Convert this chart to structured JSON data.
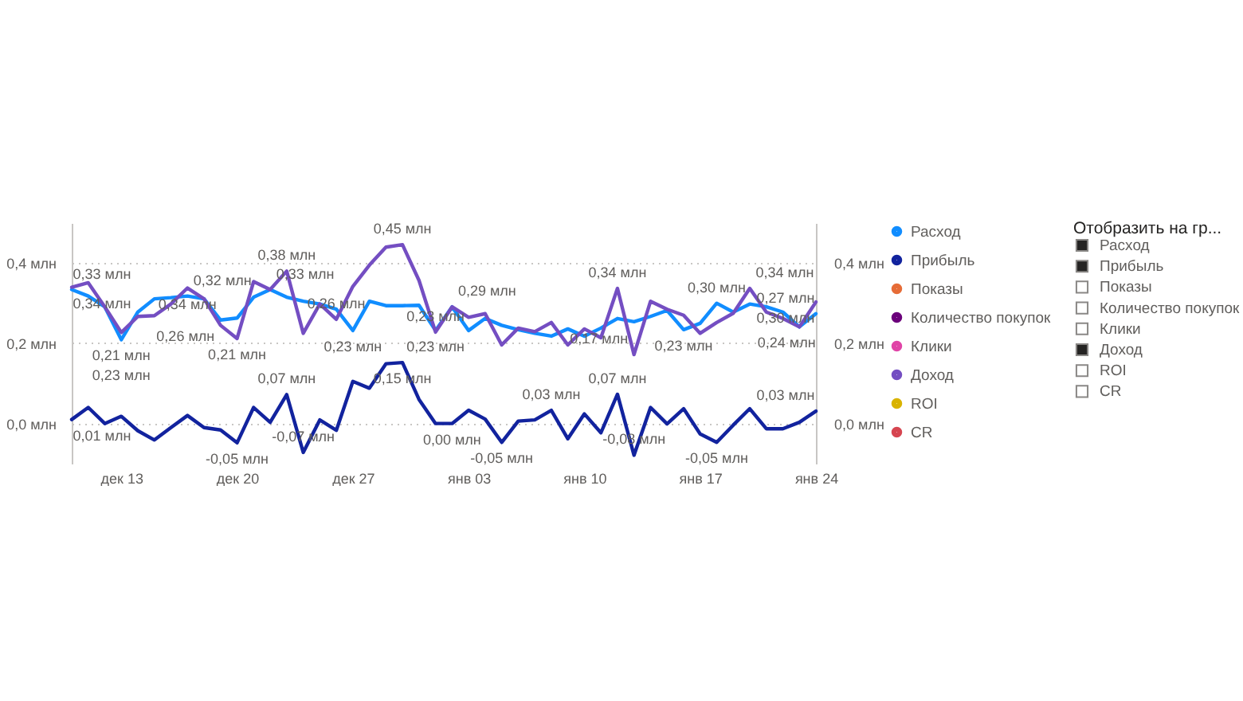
{
  "chart_data": [
    {
      "type": "line",
      "categories": [
        null,
        null,
        null,
        "дек 13",
        null,
        null,
        null,
        null,
        null,
        null,
        "дек 20",
        null,
        null,
        null,
        null,
        null,
        null,
        "дек 27",
        null,
        null,
        null,
        null,
        null,
        null,
        "янв 03",
        null,
        null,
        null,
        null,
        null,
        null,
        "янв 10",
        null,
        null,
        null,
        null,
        null,
        null,
        "янв 17",
        null,
        null,
        null,
        null,
        null,
        null,
        "янв 24"
      ],
      "ylim": [
        -0.1,
        0.5
      ],
      "yticks": [
        {
          "value": 0,
          "label": "0,0 млн"
        },
        {
          "value": 0.2,
          "label": "0,2 млн"
        },
        {
          "value": 0.4,
          "label": "0,4 млн"
        }
      ],
      "y2lim": [
        -0.1,
        0.5
      ],
      "y2ticks": [
        {
          "value": 0,
          "label": "0,0 млн"
        },
        {
          "value": 0.2,
          "label": "0,2 млн"
        },
        {
          "value": 0.4,
          "label": "0,4 млн"
        }
      ],
      "grid": "y",
      "legend": "right",
      "line_style": "solid",
      "series": [
        {
          "name": "Расход",
          "color": "#118dff",
          "values": [
            0.334,
            0.318,
            0.291,
            0.209,
            0.278,
            0.311,
            0.314,
            0.318,
            0.311,
            0.258,
            0.263,
            0.315,
            0.334,
            0.315,
            0.305,
            0.298,
            0.285,
            0.232,
            0.305,
            0.294,
            0.294,
            0.295,
            0.232,
            0.291,
            0.232,
            0.262,
            0.245,
            0.234,
            0.225,
            0.218,
            0.236,
            0.218,
            0.238,
            0.262,
            0.254,
            0.267,
            0.282,
            0.234,
            0.25,
            0.3,
            0.278,
            0.298,
            0.291,
            0.278,
            0.241,
            0.274
          ],
          "value_labels": [
            "0,33 млн",
            null,
            null,
            "0,21 млн",
            null,
            null,
            null,
            "0,32 млн",
            null,
            "0,26 млн",
            null,
            null,
            "0,33 млн",
            null,
            null,
            null,
            null,
            "0,23 млн",
            null,
            null,
            null,
            null,
            "0,23 млн",
            null,
            null,
            null,
            null,
            null,
            null,
            null,
            null,
            null,
            null,
            null,
            null,
            null,
            null,
            "0,23 млн",
            null,
            "0,30 млн",
            null,
            null,
            null,
            null,
            null,
            "0,27 млн"
          ]
        },
        {
          "name": "Прибыль",
          "color": "#12239e",
          "values": [
            0.01,
            0.04,
            0.0,
            0.018,
            -0.018,
            -0.041,
            -0.01,
            0.02,
            -0.01,
            -0.016,
            -0.048,
            0.04,
            0.003,
            0.072,
            -0.072,
            0.009,
            -0.017,
            0.105,
            0.088,
            0.149,
            0.152,
            0.06,
            0.0,
            0.0,
            0.033,
            0.011,
            -0.047,
            0.006,
            0.009,
            0.033,
            -0.038,
            0.024,
            -0.023,
            0.073,
            -0.079,
            0.04,
            -0.001,
            0.037,
            -0.026,
            -0.047,
            -0.004,
            0.037,
            -0.013,
            -0.013,
            0.003,
            0.031
          ],
          "value_labels": [
            "0,01 млн",
            null,
            null,
            null,
            null,
            null,
            null,
            null,
            null,
            null,
            "-0,05 млн",
            null,
            null,
            "0,07 млн",
            "-0,07 млн",
            null,
            null,
            null,
            null,
            null,
            "0,15 млн",
            null,
            null,
            "0,00 млн",
            null,
            null,
            "-0,05 млн",
            null,
            null,
            "0,03 млн",
            null,
            null,
            null,
            "0,07 млн",
            "-0,08 млн",
            null,
            null,
            null,
            null,
            "-0,05 млн",
            null,
            null,
            null,
            null,
            null,
            "0,03 млн"
          ]
        },
        {
          "name": "Показы",
          "color": "#e66c37",
          "values": [
            null,
            null,
            null,
            null,
            null,
            null,
            null,
            null,
            null,
            null,
            null,
            null,
            null,
            null,
            null,
            null,
            null,
            null,
            null,
            null,
            null,
            null,
            null,
            null,
            null,
            null,
            null,
            null,
            null,
            null,
            null,
            null,
            null,
            null,
            null,
            null,
            null,
            null,
            null,
            null,
            null,
            null,
            null,
            null,
            null,
            null
          ]
        },
        {
          "name": "Количество покупок",
          "color": "#6b007b",
          "values": [
            null,
            null,
            null,
            null,
            null,
            null,
            null,
            null,
            null,
            null,
            null,
            null,
            null,
            null,
            null,
            null,
            null,
            null,
            null,
            null,
            null,
            null,
            null,
            null,
            null,
            null,
            null,
            null,
            null,
            null,
            null,
            null,
            null,
            null,
            null,
            null,
            null,
            null,
            null,
            null,
            null,
            null,
            null,
            null,
            null,
            null
          ]
        },
        {
          "name": "Клики",
          "color": "#e044a7",
          "values": [
            null,
            null,
            null,
            null,
            null,
            null,
            null,
            null,
            null,
            null,
            null,
            null,
            null,
            null,
            null,
            null,
            null,
            null,
            null,
            null,
            null,
            null,
            null,
            null,
            null,
            null,
            null,
            null,
            null,
            null,
            null,
            null,
            null,
            null,
            null,
            null,
            null,
            null,
            null,
            null,
            null,
            null,
            null,
            null,
            null,
            null
          ]
        },
        {
          "name": "Доход",
          "color": "#744ec2",
          "values": [
            0.34,
            0.351,
            0.291,
            0.227,
            0.267,
            0.269,
            0.298,
            0.338,
            0.311,
            0.245,
            0.212,
            0.354,
            0.334,
            0.38,
            0.225,
            0.298,
            0.26,
            0.342,
            0.395,
            0.44,
            0.446,
            0.357,
            0.228,
            0.291,
            0.265,
            0.274,
            0.196,
            0.238,
            0.229,
            0.252,
            0.196,
            0.236,
            0.214,
            0.337,
            0.172,
            0.305,
            0.285,
            0.27,
            0.225,
            0.252,
            0.275,
            0.337,
            0.278,
            0.262,
            0.241,
            0.303
          ],
          "value_labels": [
            "0,34 млн",
            null,
            null,
            "0,23 млн",
            null,
            null,
            null,
            "0,34 млн",
            null,
            null,
            "0,21 млн",
            null,
            null,
            "0,38 млн",
            null,
            null,
            "0,26 млн",
            null,
            null,
            null,
            "0,45 млн",
            null,
            "0,23 млн",
            "0,29 млн",
            null,
            null,
            null,
            null,
            null,
            null,
            null,
            null,
            null,
            "0,34 млн",
            "0,17 млн",
            null,
            null,
            null,
            null,
            null,
            null,
            "0,34 млн",
            null,
            null,
            "0,24 млн",
            "0,30 млн"
          ]
        },
        {
          "name": "ROI",
          "color": "#d9b300",
          "values": [
            null,
            null,
            null,
            null,
            null,
            null,
            null,
            null,
            null,
            null,
            null,
            null,
            null,
            null,
            null,
            null,
            null,
            null,
            null,
            null,
            null,
            null,
            null,
            null,
            null,
            null,
            null,
            null,
            null,
            null,
            null,
            null,
            null,
            null,
            null,
            null,
            null,
            null,
            null,
            null,
            null,
            null,
            null,
            null,
            null,
            null
          ]
        },
        {
          "name": "CR",
          "color": "#d64550",
          "values": [
            null,
            null,
            null,
            null,
            null,
            null,
            null,
            null,
            null,
            null,
            null,
            null,
            null,
            null,
            null,
            null,
            null,
            null,
            null,
            null,
            null,
            null,
            null,
            null,
            null,
            null,
            null,
            null,
            null,
            null,
            null,
            null,
            null,
            null,
            null,
            null,
            null,
            null,
            null,
            null,
            null,
            null,
            null,
            null,
            null,
            null
          ]
        }
      ]
    },
    {
      "type": "other",
      "title": "Отобразить на гр...",
      "categories": [
        "Расход",
        "Прибыль",
        "Показы",
        "Количество покупок",
        "Клики",
        "Доход",
        "ROI",
        "CR"
      ],
      "colors": [
        "#252423",
        "#252423",
        "#ffffff",
        "#ffffff",
        "#ffffff",
        "#252423",
        "#ffffff",
        "#ffffff"
      ]
    }
  ]
}
